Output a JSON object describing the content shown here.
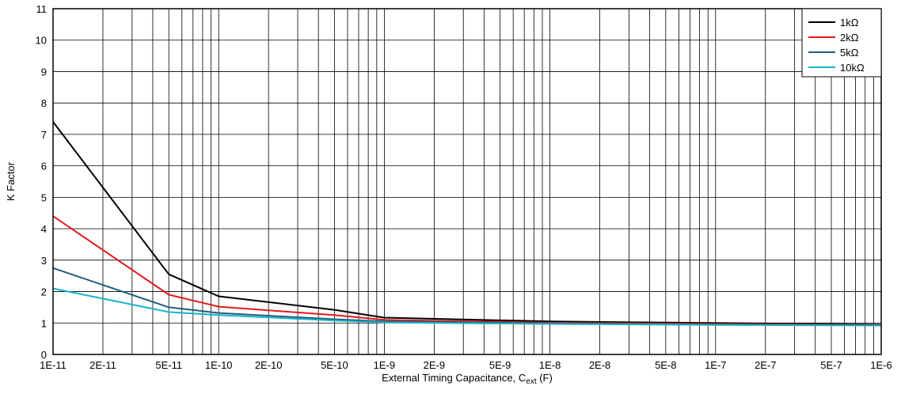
{
  "chart_data": {
    "type": "line",
    "title": "",
    "xlabel": "External Timing Capacitance, C",
    "xlabel_sub": "ext",
    "xlabel_suffix": " (F)",
    "ylabel": "K Factor",
    "xscale": "log",
    "xlim": [
      1e-11,
      1e-06
    ],
    "ylim": [
      0,
      11
    ],
    "grid": true,
    "legend_position": "top-right",
    "x_tick_labels": [
      {
        "value": 1e-11,
        "label": "1E-11"
      },
      {
        "value": 2e-11,
        "label": "2E-11"
      },
      {
        "value": 5e-11,
        "label": "5E-11"
      },
      {
        "value": 1e-10,
        "label": "1E-10"
      },
      {
        "value": 2e-10,
        "label": "2E-10"
      },
      {
        "value": 5e-10,
        "label": "5E-10"
      },
      {
        "value": 1e-09,
        "label": "1E-9"
      },
      {
        "value": 2e-09,
        "label": "2E-9"
      },
      {
        "value": 5e-09,
        "label": "5E-9"
      },
      {
        "value": 1e-08,
        "label": "1E-8"
      },
      {
        "value": 2e-08,
        "label": "2E-8"
      },
      {
        "value": 5e-08,
        "label": "5E-8"
      },
      {
        "value": 1e-07,
        "label": "1E-7"
      },
      {
        "value": 2e-07,
        "label": "2E-7"
      },
      {
        "value": 5e-07,
        "label": "5E-7"
      },
      {
        "value": 1e-06,
        "label": "1E-6"
      }
    ],
    "y_ticks": [
      0,
      1,
      2,
      3,
      4,
      5,
      6,
      7,
      8,
      9,
      10,
      11
    ],
    "series": [
      {
        "name": "1kΩ",
        "color": "#000000",
        "points": [
          [
            1e-11,
            7.4
          ],
          [
            5e-11,
            2.55
          ],
          [
            1e-10,
            1.85
          ],
          [
            5e-10,
            1.42
          ],
          [
            1e-09,
            1.17
          ],
          [
            1e-08,
            1.05
          ],
          [
            1e-07,
            1.0
          ],
          [
            1e-06,
            0.95
          ]
        ]
      },
      {
        "name": "2kΩ",
        "color": "#e41a1c",
        "points": [
          [
            1e-11,
            4.4
          ],
          [
            5e-11,
            1.9
          ],
          [
            1e-10,
            1.52
          ],
          [
            5e-10,
            1.25
          ],
          [
            1e-09,
            1.1
          ],
          [
            1e-08,
            1.01
          ],
          [
            1e-07,
            0.97
          ],
          [
            1e-06,
            0.94
          ]
        ]
      },
      {
        "name": "5kΩ",
        "color": "#1f5e7a",
        "points": [
          [
            1e-11,
            2.75
          ],
          [
            5e-11,
            1.5
          ],
          [
            1e-10,
            1.32
          ],
          [
            5e-10,
            1.12
          ],
          [
            1e-09,
            1.05
          ],
          [
            1e-08,
            0.99
          ],
          [
            1e-07,
            0.95
          ],
          [
            1e-06,
            0.93
          ]
        ]
      },
      {
        "name": "10kΩ",
        "color": "#17b3c9",
        "points": [
          [
            1e-11,
            2.1
          ],
          [
            5e-11,
            1.35
          ],
          [
            1e-10,
            1.25
          ],
          [
            5e-10,
            1.08
          ],
          [
            1e-09,
            1.02
          ],
          [
            1e-08,
            0.97
          ],
          [
            1e-07,
            0.94
          ],
          [
            1e-06,
            0.92
          ]
        ]
      }
    ]
  }
}
